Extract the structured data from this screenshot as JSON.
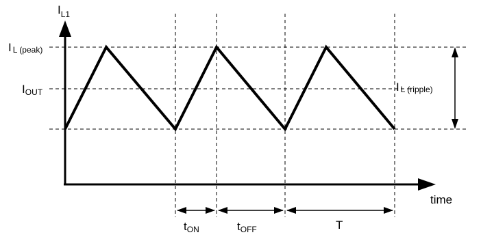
{
  "colors": {
    "line": "#000000",
    "background": "#ffffff"
  },
  "labels": {
    "y_axis": {
      "main": "I",
      "sub": "L1"
    },
    "x_axis": "time",
    "peak": {
      "main": "I",
      "sub": "L (peak)"
    },
    "out": {
      "main": "I",
      "sub": "OUT"
    },
    "ripple": {
      "main": "I",
      "sub": "L (ripple)"
    },
    "t_on": {
      "main": "t",
      "sub": "ON"
    },
    "t_off": {
      "main": "t",
      "sub": "OFF"
    },
    "period": "T"
  }
}
